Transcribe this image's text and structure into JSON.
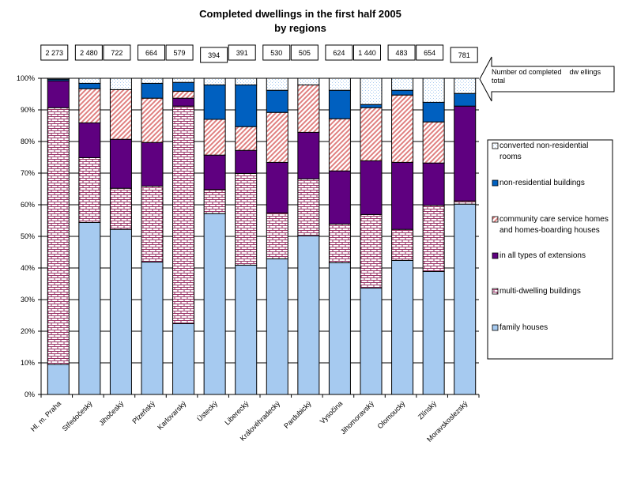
{
  "chart_data": {
    "type": "bar",
    "stacked": "percent",
    "title": "Completed dwellings in the first half 2005",
    "subtitle": "by regions",
    "xlabel": "",
    "ylabel": "",
    "ylim": [
      0,
      100
    ],
    "yticks": [
      "0%",
      "10%",
      "20%",
      "30%",
      "40%",
      "50%",
      "60%",
      "70%",
      "80%",
      "90%",
      "100%"
    ],
    "grid": true,
    "legend_position": "right",
    "categories": [
      "Hl. m. Praha",
      "Středočeský",
      "Jihočeský",
      "Plzeňský",
      "Karlovarský",
      "Ústecký",
      "Liberecký",
      "Královéhradecký",
      "Pardubický",
      "Vysočina",
      "Jihomoravský",
      "Olomoucký",
      "Zlínský",
      "Moravskoslezský"
    ],
    "totals": [
      "2 273",
      "2 480",
      "722",
      "664",
      "579",
      "394",
      "391",
      "530",
      "505",
      "624",
      "1 440",
      "483",
      "654",
      "781"
    ],
    "totals_annotation": "Number od completed    dw ellings total",
    "series": [
      {
        "name": "family houses",
        "color": "#a6caf0",
        "pattern": "solid",
        "values": [
          9.5,
          54.4,
          52.2,
          41.9,
          22.4,
          57.2,
          40.9,
          42.9,
          50.2,
          41.7,
          33.7,
          42.4,
          38.9,
          60.2
        ]
      },
      {
        "name": "multi-dwelling buildings",
        "color": "#993366",
        "pattern": "brick",
        "values": [
          81.2,
          20.5,
          13.0,
          24.0,
          68.8,
          7.6,
          29.0,
          14.5,
          18.0,
          12.2,
          23.2,
          9.8,
          20.9,
          1.0
        ]
      },
      {
        "name": "in all types of extensions",
        "color": "#5f0080",
        "pattern": "solid",
        "values": [
          8.5,
          11.0,
          15.5,
          13.8,
          2.5,
          10.9,
          7.3,
          16.0,
          14.7,
          16.8,
          17.0,
          21.2,
          13.4,
          30.0
        ]
      },
      {
        "name": "community care service homes and homes-boarding houses",
        "color": "#e08080",
        "pattern": "diagonal",
        "values": [
          0,
          10.8,
          15.7,
          14.0,
          2.2,
          11.3,
          7.5,
          15.8,
          15.0,
          16.5,
          16.8,
          21.3,
          13.0,
          0
        ]
      },
      {
        "name": "non-residential buildings",
        "color": "#0060c0",
        "pattern": "solid",
        "values": [
          0.5,
          1.7,
          0,
          4.7,
          2.8,
          10.9,
          13.2,
          7.0,
          0,
          9.0,
          1.0,
          1.5,
          6.2,
          4.0
        ]
      },
      {
        "name": "converted non-residential rooms",
        "color": "#a6caf0",
        "pattern": "dots",
        "values": [
          0.3,
          1.6,
          3.6,
          1.6,
          1.3,
          2.1,
          2.1,
          3.8,
          2.1,
          3.8,
          8.3,
          3.8,
          7.6,
          4.8
        ]
      }
    ]
  }
}
